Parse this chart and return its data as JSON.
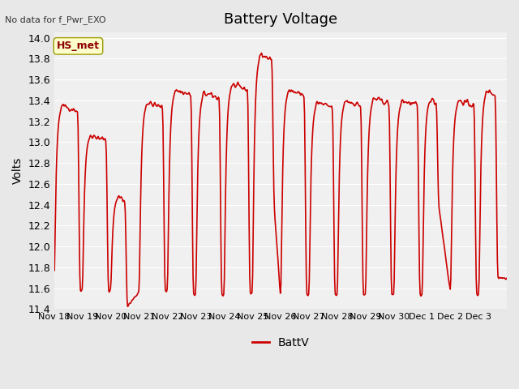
{
  "title": "Battery Voltage",
  "ylabel": "Volts",
  "xlabel": "",
  "note": "No data for f_Pwr_EXO",
  "legend_label": "BattV",
  "legend_line_color": "#cc0000",
  "label_HS_met": "HS_met",
  "ylim": [
    11.4,
    14.05
  ],
  "yticks": [
    11.4,
    11.6,
    11.8,
    12.0,
    12.2,
    12.4,
    12.6,
    12.8,
    13.0,
    13.2,
    13.4,
    13.6,
    13.8,
    14.0
  ],
  "xtick_labels": [
    "Nov 18",
    "Nov 19",
    "Nov 20",
    "Nov 21",
    "Nov 22",
    "Nov 23",
    "Nov 24",
    "Nov 25",
    "Nov 26",
    "Nov 27",
    "Nov 28",
    "Nov 29",
    "Nov 30",
    "Dec 1",
    "Dec 2",
    "Dec 3"
  ],
  "line_color": "#cc0000",
  "line_width": 1.2,
  "bg_color": "#e8e8e8",
  "plot_bg": "#f0f0f0",
  "title_fontsize": 13,
  "axis_fontsize": 10,
  "tick_fontsize": 9
}
